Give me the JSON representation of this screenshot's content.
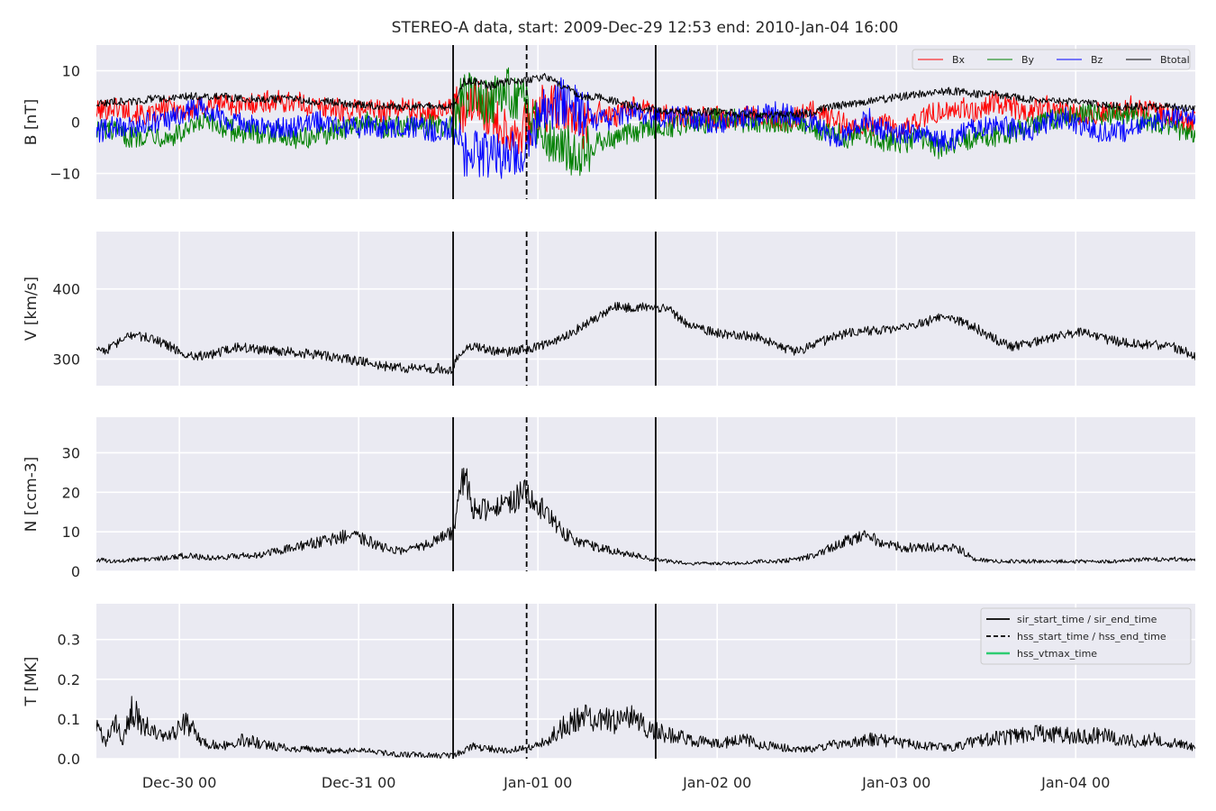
{
  "figure": {
    "title": "STEREO-A data, start: 2009-Dec-29 12:53  end: 2010-Jan-04 16:00"
  },
  "colors": {
    "panel_bg": "#eaeaf2",
    "grid": "#ffffff",
    "bx": "#ff0000",
    "by": "#008000",
    "bz": "#0000ff",
    "btotal": "#000000",
    "line": "#000000",
    "vtmax": "#2ecc71"
  },
  "chart_data": [
    {
      "type": "line",
      "ylabel": "B [nT]",
      "ylim": [
        -15,
        15
      ],
      "yticks": [
        10,
        0,
        -10
      ],
      "ytick_labels": [
        "10",
        "0",
        "−10"
      ],
      "xlim": [
        0,
        6.13
      ],
      "x_unit": "days since 2009-12-29 12:53",
      "xticks": [
        0.463,
        1.463,
        2.463,
        3.463,
        4.463,
        5.463
      ],
      "grid": true,
      "legend_placement": "top-right",
      "series": [
        {
          "name": "Bx",
          "color": "#ff0000",
          "x": [
            0,
            0.1,
            0.2,
            0.3,
            0.4,
            0.5,
            0.6,
            0.7,
            0.8,
            0.9,
            1.0,
            1.1,
            1.2,
            1.3,
            1.4,
            1.5,
            1.6,
            1.7,
            1.8,
            1.9,
            1.99,
            2.05,
            2.1,
            2.2,
            2.3,
            2.4,
            2.5,
            2.6,
            2.7,
            2.8,
            2.9,
            3.0,
            3.1,
            3.2,
            3.3,
            3.4,
            3.5,
            3.6,
            3.7,
            3.8,
            3.9,
            4.0,
            4.1,
            4.2,
            4.3,
            4.4,
            4.5,
            4.6,
            4.7,
            4.8,
            4.9,
            5.0,
            5.1,
            5.2,
            5.3,
            5.4,
            5.5,
            5.6,
            5.7,
            5.8,
            5.9,
            6.0,
            6.13
          ],
          "values": [
            2,
            3,
            2,
            1,
            3,
            2,
            3,
            4,
            3,
            4,
            4,
            4,
            3,
            3,
            2,
            3,
            2,
            3,
            2,
            2,
            3,
            1,
            4,
            2,
            -2,
            -1,
            3,
            2,
            -1,
            2,
            1,
            3,
            2,
            1,
            1,
            1,
            1,
            1,
            1,
            0,
            1,
            2,
            1,
            -1,
            -1,
            0,
            -2,
            1,
            2,
            3,
            2,
            4,
            3,
            2,
            3,
            2,
            1,
            2,
            3,
            3,
            2,
            1,
            0
          ]
        },
        {
          "name": "By",
          "color": "#008000",
          "x": [
            0,
            0.1,
            0.2,
            0.3,
            0.4,
            0.5,
            0.6,
            0.7,
            0.8,
            0.9,
            1.0,
            1.1,
            1.2,
            1.3,
            1.4,
            1.5,
            1.6,
            1.7,
            1.8,
            1.9,
            1.99,
            2.05,
            2.1,
            2.2,
            2.3,
            2.4,
            2.5,
            2.6,
            2.7,
            2.8,
            2.9,
            3.0,
            3.1,
            3.2,
            3.3,
            3.4,
            3.5,
            3.6,
            3.7,
            3.8,
            3.9,
            4.0,
            4.1,
            4.2,
            4.3,
            4.4,
            4.5,
            4.6,
            4.7,
            4.8,
            4.9,
            5.0,
            5.1,
            5.2,
            5.3,
            5.4,
            5.5,
            5.6,
            5.7,
            5.8,
            5.9,
            6.0,
            6.13
          ],
          "values": [
            -1,
            -2,
            -3,
            -2,
            -3,
            -2,
            0,
            -1,
            -2,
            -2,
            -2,
            -3,
            -3,
            -2,
            -1,
            0,
            -1,
            -1,
            0,
            -1,
            -1,
            6,
            5,
            4,
            6,
            3,
            -2,
            -5,
            -6,
            -4,
            -3,
            -2,
            -1,
            -1,
            0,
            0,
            1,
            0,
            0,
            0,
            0,
            -1,
            -2,
            -3,
            -2,
            -4,
            -4,
            -3,
            -5,
            -4,
            -3,
            -3,
            -2,
            -1,
            0,
            1,
            2,
            1,
            2,
            1,
            0,
            -1,
            -2
          ]
        },
        {
          "name": "Bz",
          "color": "#0000ff",
          "x": [
            0,
            0.1,
            0.2,
            0.3,
            0.4,
            0.5,
            0.6,
            0.7,
            0.8,
            0.9,
            1.0,
            1.1,
            1.2,
            1.3,
            1.4,
            1.5,
            1.6,
            1.7,
            1.8,
            1.9,
            1.99,
            2.05,
            2.1,
            2.2,
            2.3,
            2.4,
            2.5,
            2.6,
            2.7,
            2.8,
            2.9,
            3.0,
            3.1,
            3.2,
            3.3,
            3.4,
            3.5,
            3.6,
            3.7,
            3.8,
            3.9,
            4.0,
            4.1,
            4.2,
            4.3,
            4.4,
            4.5,
            4.6,
            4.7,
            4.8,
            4.9,
            5.0,
            5.1,
            5.2,
            5.3,
            5.4,
            5.5,
            5.6,
            5.7,
            5.8,
            5.9,
            6.0,
            6.13
          ],
          "values": [
            -2,
            -1,
            -1,
            0,
            0,
            2,
            3,
            1,
            0,
            -1,
            -1,
            -1,
            0,
            0,
            -1,
            -1,
            -1,
            -1,
            -1,
            -2,
            -1,
            -7,
            -6,
            -7,
            -6,
            -5,
            3,
            4,
            2,
            0,
            1,
            2,
            1,
            1,
            1,
            0,
            0,
            1,
            1,
            2,
            1,
            0,
            -3,
            -2,
            1,
            -2,
            -2,
            -2,
            -4,
            -3,
            -1,
            -1,
            -1,
            -2,
            0,
            1,
            -1,
            -2,
            -2,
            -1,
            0,
            1,
            1
          ]
        },
        {
          "name": "Btotal",
          "color": "#000000",
          "x": [
            0,
            0.1,
            0.2,
            0.3,
            0.4,
            0.5,
            0.6,
            0.7,
            0.8,
            0.9,
            1.0,
            1.1,
            1.2,
            1.3,
            1.4,
            1.5,
            1.6,
            1.7,
            1.8,
            1.9,
            1.99,
            2.05,
            2.1,
            2.2,
            2.3,
            2.4,
            2.5,
            2.6,
            2.7,
            2.8,
            2.9,
            3.0,
            3.1,
            3.2,
            3.3,
            3.4,
            3.5,
            3.6,
            3.7,
            3.8,
            3.9,
            4.0,
            4.1,
            4.2,
            4.3,
            4.4,
            4.5,
            4.6,
            4.7,
            4.8,
            4.9,
            5.0,
            5.1,
            5.2,
            5.3,
            5.4,
            5.5,
            5.6,
            5.7,
            5.8,
            5.9,
            6.0,
            6.13
          ],
          "values": [
            3.5,
            4,
            4,
            4.5,
            4.5,
            5,
            5,
            5,
            4.5,
            4.5,
            4.5,
            4.5,
            4,
            4,
            3.5,
            3.5,
            3,
            3,
            3,
            3,
            3,
            8,
            8,
            7,
            8,
            8,
            9,
            7,
            5,
            5,
            4,
            3,
            2.5,
            2,
            2,
            2,
            2,
            1.5,
            1.5,
            1.5,
            1.5,
            2,
            3,
            3.5,
            4,
            4.5,
            5,
            5.5,
            6,
            6,
            5.5,
            5.5,
            5,
            4.5,
            4,
            4,
            4,
            3.5,
            3,
            3,
            3,
            3,
            2.5
          ]
        }
      ]
    },
    {
      "type": "line",
      "ylabel": "V [km/s]",
      "ylim": [
        262,
        482
      ],
      "yticks": [
        400,
        300
      ],
      "ytick_labels": [
        "400",
        "300"
      ],
      "xlim": [
        0,
        6.13
      ],
      "xticks": [
        0.463,
        1.463,
        2.463,
        3.463,
        4.463,
        5.463
      ],
      "grid": true,
      "series": [
        {
          "color": "#000000",
          "x": [
            0,
            0.05,
            0.1,
            0.2,
            0.3,
            0.4,
            0.5,
            0.6,
            0.7,
            0.8,
            0.9,
            1.0,
            1.1,
            1.2,
            1.3,
            1.4,
            1.5,
            1.6,
            1.7,
            1.8,
            1.9,
            1.99,
            2.0,
            2.05,
            2.1,
            2.2,
            2.3,
            2.4,
            2.5,
            2.6,
            2.7,
            2.8,
            2.9,
            3.0,
            3.1,
            3.2,
            3.3,
            3.4,
            3.5,
            3.6,
            3.7,
            3.8,
            3.9,
            4.0,
            4.1,
            4.2,
            4.3,
            4.4,
            4.5,
            4.6,
            4.7,
            4.8,
            4.9,
            5.0,
            5.1,
            5.2,
            5.3,
            5.4,
            5.5,
            5.6,
            5.7,
            5.8,
            5.9,
            6.0,
            6.13
          ],
          "values": [
            318,
            312,
            320,
            335,
            330,
            320,
            305,
            305,
            310,
            318,
            313,
            312,
            310,
            307,
            304,
            300,
            295,
            290,
            288,
            286,
            287,
            283,
            300,
            312,
            318,
            312,
            310,
            315,
            320,
            330,
            345,
            360,
            375,
            372,
            375,
            370,
            350,
            340,
            336,
            334,
            332,
            320,
            310,
            320,
            330,
            338,
            340,
            342,
            345,
            350,
            360,
            355,
            345,
            330,
            318,
            322,
            328,
            335,
            338,
            330,
            325,
            322,
            320,
            318,
            305
          ]
        }
      ]
    },
    {
      "type": "line",
      "ylabel": "N [ccm-3]",
      "ylim": [
        0,
        39
      ],
      "yticks": [
        30,
        20,
        10,
        0
      ],
      "ytick_labels": [
        "30",
        "20",
        "10",
        "0"
      ],
      "xlim": [
        0,
        6.13
      ],
      "xticks": [
        0.463,
        1.463,
        2.463,
        3.463,
        4.463,
        5.463
      ],
      "grid": true,
      "series": [
        {
          "color": "#000000",
          "x": [
            0,
            0.1,
            0.2,
            0.3,
            0.4,
            0.5,
            0.6,
            0.7,
            0.8,
            0.9,
            1.0,
            1.1,
            1.2,
            1.3,
            1.4,
            1.5,
            1.6,
            1.7,
            1.8,
            1.9,
            1.99,
            2.05,
            2.1,
            2.2,
            2.3,
            2.4,
            2.5,
            2.6,
            2.7,
            2.8,
            2.9,
            3.0,
            3.1,
            3.2,
            3.3,
            3.4,
            3.5,
            3.6,
            3.7,
            3.8,
            3.9,
            4.0,
            4.1,
            4.2,
            4.3,
            4.4,
            4.5,
            4.6,
            4.7,
            4.8,
            4.9,
            5.0,
            5.1,
            5.2,
            5.3,
            5.4,
            5.5,
            5.6,
            5.7,
            5.8,
            5.9,
            6.0,
            6.13
          ],
          "values": [
            3,
            2.5,
            3,
            3,
            3.5,
            4,
            3.5,
            3.5,
            4,
            4,
            5,
            6,
            7,
            8,
            9,
            8,
            6,
            5,
            6,
            8,
            10,
            25,
            16,
            15,
            17,
            20,
            15,
            10,
            7,
            6,
            5,
            4,
            3,
            2.5,
            2,
            2,
            2,
            2,
            2.5,
            2.5,
            3,
            4,
            6,
            8,
            9,
            7,
            6,
            6,
            6,
            6,
            3,
            2.5,
            2.5,
            2.5,
            2.5,
            2.5,
            2.5,
            2.5,
            2.5,
            3,
            3,
            3,
            3
          ]
        }
      ]
    },
    {
      "type": "line",
      "ylabel": "T [MK]",
      "ylim": [
        0,
        0.39
      ],
      "yticks": [
        0.3,
        0.2,
        0.1,
        0.0
      ],
      "ytick_labels": [
        "0.3",
        "0.2",
        "0.1",
        "0.0"
      ],
      "xlim": [
        0,
        6.13
      ],
      "xticks": [
        0.463,
        1.463,
        2.463,
        3.463,
        4.463,
        5.463
      ],
      "xtick_labels": [
        "Dec-30 00",
        "Dec-31 00",
        "Jan-01 00",
        "Jan-02 00",
        "Jan-03 00",
        "Jan-04 00"
      ],
      "grid": true,
      "legend_placement": "top-right",
      "series": [
        {
          "color": "#000000",
          "x": [
            0,
            0.05,
            0.1,
            0.15,
            0.2,
            0.3,
            0.4,
            0.5,
            0.6,
            0.7,
            0.8,
            0.9,
            1.0,
            1.1,
            1.2,
            1.3,
            1.4,
            1.5,
            1.6,
            1.7,
            1.8,
            1.9,
            1.99,
            2.05,
            2.1,
            2.2,
            2.3,
            2.4,
            2.5,
            2.6,
            2.7,
            2.8,
            2.9,
            3.0,
            3.1,
            3.2,
            3.3,
            3.4,
            3.5,
            3.6,
            3.7,
            3.8,
            3.9,
            4.0,
            4.1,
            4.2,
            4.3,
            4.4,
            4.5,
            4.6,
            4.7,
            4.8,
            4.9,
            5.0,
            5.1,
            5.2,
            5.3,
            5.4,
            5.5,
            5.6,
            5.7,
            5.8,
            5.9,
            6.0,
            6.13
          ],
          "values": [
            0.08,
            0.04,
            0.09,
            0.05,
            0.12,
            0.07,
            0.05,
            0.09,
            0.04,
            0.03,
            0.05,
            0.04,
            0.03,
            0.025,
            0.025,
            0.02,
            0.02,
            0.02,
            0.015,
            0.01,
            0.01,
            0.008,
            0.008,
            0.02,
            0.03,
            0.025,
            0.02,
            0.03,
            0.04,
            0.08,
            0.11,
            0.1,
            0.09,
            0.1,
            0.07,
            0.06,
            0.05,
            0.04,
            0.04,
            0.05,
            0.035,
            0.03,
            0.025,
            0.025,
            0.035,
            0.04,
            0.05,
            0.045,
            0.04,
            0.035,
            0.03,
            0.03,
            0.045,
            0.05,
            0.055,
            0.06,
            0.065,
            0.06,
            0.055,
            0.06,
            0.05,
            0.045,
            0.05,
            0.04,
            0.03
          ]
        }
      ],
      "legend": [
        {
          "label": "sir_start_time / sir_end_time",
          "style": "solid",
          "color": "#000000"
        },
        {
          "label": "hss_start_time / hss_end_time",
          "style": "dashed",
          "color": "#000000"
        },
        {
          "label": "hss_vtmax_time",
          "style": "solid",
          "color": "#2ecc71"
        }
      ]
    }
  ],
  "event_lines": [
    {
      "x": 1.99,
      "style": "solid"
    },
    {
      "x": 2.4,
      "style": "dashed"
    },
    {
      "x": 3.12,
      "style": "solid"
    }
  ]
}
